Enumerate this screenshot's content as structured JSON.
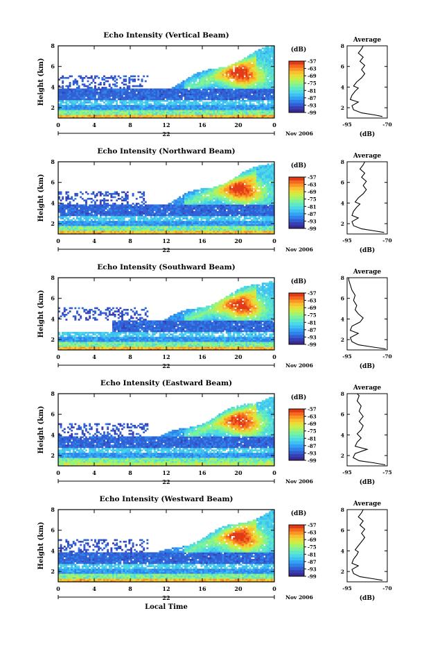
{
  "chart_data": [
    {
      "type": "heatmap",
      "title": "Echo Intensity (Vertical Beam)",
      "ylabel": "Height (km)",
      "x_ticks": [
        "0",
        "4",
        "8",
        "12",
        "16",
        "20",
        "0"
      ],
      "x_day_label": "22",
      "x_month_label": "Nov 2006",
      "xlim": [
        0,
        24
      ],
      "y_ticks": [
        "2",
        "4",
        "6",
        "8"
      ],
      "ylim": [
        1,
        8
      ],
      "colorbar_unit": "(dB)",
      "colorbar_ticks": [
        "-57",
        "-63",
        "-69",
        "-75",
        "-81",
        "-87",
        "-93",
        "-99"
      ],
      "colorbar_range": [
        -99,
        -57
      ],
      "average_profile": {
        "title": "Average",
        "xlabel": "(dB)",
        "x_ticks": [
          "-95",
          "-70"
        ],
        "xlim": [
          -95,
          -70
        ],
        "y_ticks": [
          "2",
          "4",
          "6",
          "8"
        ],
        "ylim": [
          1,
          8
        ],
        "points": [
          [
            -73,
            1.15
          ],
          [
            -78,
            1.3
          ],
          [
            -86,
            1.5
          ],
          [
            -91,
            1.8
          ],
          [
            -92,
            2.2
          ],
          [
            -88,
            2.55
          ],
          [
            -93,
            2.8
          ],
          [
            -92,
            3.2
          ],
          [
            -90,
            3.6
          ],
          [
            -88,
            3.9
          ],
          [
            -91,
            4.1
          ],
          [
            -89,
            4.5
          ],
          [
            -86,
            4.9
          ],
          [
            -84,
            5.3
          ],
          [
            -86,
            5.7
          ],
          [
            -84,
            6.1
          ],
          [
            -87,
            6.5
          ],
          [
            -85,
            6.9
          ],
          [
            -88,
            7.3
          ],
          [
            -86,
            7.7
          ],
          [
            -85,
            8.0
          ]
        ]
      }
    },
    {
      "type": "heatmap",
      "title": "Echo Intensity (Northward Beam)",
      "ylabel": "Height (km)",
      "x_ticks": [
        "0",
        "4",
        "8",
        "12",
        "16",
        "20",
        "0"
      ],
      "x_day_label": "22",
      "x_month_label": "Nov 2006",
      "xlim": [
        0,
        24
      ],
      "y_ticks": [
        "2",
        "4",
        "6",
        "8"
      ],
      "ylim": [
        1,
        8
      ],
      "colorbar_unit": "(dB)",
      "colorbar_ticks": [
        "-57",
        "-63",
        "-69",
        "-75",
        "-81",
        "-87",
        "-93",
        "-99"
      ],
      "colorbar_range": [
        -99,
        -57
      ],
      "average_profile": {
        "title": "Average",
        "xlabel": "(dB)",
        "x_ticks": [
          "-95",
          "-70"
        ],
        "xlim": [
          -95,
          -70
        ],
        "y_ticks": [
          "2",
          "4",
          "6",
          "8"
        ],
        "ylim": [
          1,
          8
        ],
        "points": [
          [
            -72,
            1.15
          ],
          [
            -78,
            1.3
          ],
          [
            -86,
            1.5
          ],
          [
            -91,
            1.8
          ],
          [
            -92,
            2.2
          ],
          [
            -88,
            2.55
          ],
          [
            -92,
            2.8
          ],
          [
            -91,
            3.2
          ],
          [
            -89,
            3.6
          ],
          [
            -87,
            3.9
          ],
          [
            -90,
            4.1
          ],
          [
            -88,
            4.5
          ],
          [
            -85,
            4.9
          ],
          [
            -83,
            5.3
          ],
          [
            -85,
            5.7
          ],
          [
            -83,
            6.1
          ],
          [
            -86,
            6.5
          ],
          [
            -84,
            6.9
          ],
          [
            -87,
            7.3
          ],
          [
            -85,
            7.7
          ],
          [
            -84,
            8.0
          ]
        ]
      }
    },
    {
      "type": "heatmap",
      "title": "Echo Intensity (Southward Beam)",
      "ylabel": "Height (km)",
      "x_ticks": [
        "0",
        "4",
        "8",
        "12",
        "16",
        "20",
        "0"
      ],
      "x_day_label": "22",
      "x_month_label": "Nov 2006",
      "xlim": [
        0,
        24
      ],
      "y_ticks": [
        "2",
        "4",
        "6",
        "8"
      ],
      "ylim": [
        1,
        8
      ],
      "colorbar_unit": "(dB)",
      "colorbar_ticks": [
        "-57",
        "-63",
        "-69",
        "-75",
        "-81",
        "-87",
        "-93",
        "-99"
      ],
      "colorbar_range": [
        -99,
        -57
      ],
      "average_profile": {
        "title": "Average",
        "xlabel": "(dB)",
        "x_ticks": [
          "-95",
          "-70"
        ],
        "xlim": [
          -95,
          -70
        ],
        "y_ticks": [
          "2",
          "4",
          "6",
          "8"
        ],
        "ylim": [
          1,
          8
        ],
        "points": [
          [
            -71,
            1.1
          ],
          [
            -80,
            1.3
          ],
          [
            -88,
            1.5
          ],
          [
            -92,
            1.8
          ],
          [
            -93,
            2.2
          ],
          [
            -88,
            2.6
          ],
          [
            -93,
            2.9
          ],
          [
            -92,
            3.3
          ],
          [
            -87,
            3.7
          ],
          [
            -85,
            4.1
          ],
          [
            -88,
            4.5
          ],
          [
            -90,
            4.9
          ],
          [
            -89,
            5.3
          ],
          [
            -91,
            5.8
          ],
          [
            -90,
            6.3
          ],
          [
            -92,
            6.8
          ],
          [
            -93,
            7.3
          ],
          [
            -94,
            7.8
          ],
          [
            -94,
            8.0
          ]
        ]
      }
    },
    {
      "type": "heatmap",
      "title": "Echo Intensity (Eastward Beam)",
      "ylabel": "Height (km)",
      "x_ticks": [
        "0",
        "4",
        "8",
        "12",
        "16",
        "20",
        "0"
      ],
      "x_day_label": "22",
      "x_month_label": "Nov 2006",
      "xlim": [
        0,
        24
      ],
      "y_ticks": [
        "2",
        "4",
        "6",
        "8"
      ],
      "ylim": [
        1,
        8
      ],
      "colorbar_unit": "(dB)",
      "colorbar_ticks": [
        "-57",
        "-63",
        "-69",
        "-75",
        "-81",
        "-87",
        "-93",
        "-99"
      ],
      "colorbar_range": [
        -99,
        -57
      ],
      "average_profile": {
        "title": "Average",
        "xlabel": "(dB)",
        "x_ticks": [
          "-95",
          "-75"
        ],
        "xlim": [
          -95,
          -75
        ],
        "y_ticks": [
          "2",
          "4",
          "6",
          "8"
        ],
        "ylim": [
          1,
          8
        ],
        "points": [
          [
            -76,
            1.1
          ],
          [
            -82,
            1.3
          ],
          [
            -89,
            1.5
          ],
          [
            -92,
            1.8
          ],
          [
            -91,
            2.2
          ],
          [
            -85,
            2.6
          ],
          [
            -91,
            2.9
          ],
          [
            -90,
            3.3
          ],
          [
            -88,
            3.7
          ],
          [
            -90,
            4.1
          ],
          [
            -88,
            4.5
          ],
          [
            -87,
            4.9
          ],
          [
            -89,
            5.3
          ],
          [
            -87,
            5.8
          ],
          [
            -89,
            6.3
          ],
          [
            -88,
            6.8
          ],
          [
            -90,
            7.3
          ],
          [
            -89,
            7.8
          ],
          [
            -90,
            8.0
          ]
        ]
      }
    },
    {
      "type": "heatmap",
      "title": "Echo Intensity (Westward Beam)",
      "ylabel": "Height (km)",
      "xlabel": "Local Time",
      "x_ticks": [
        "0",
        "4",
        "8",
        "12",
        "16",
        "20",
        "0"
      ],
      "x_day_label": "22",
      "x_month_label": "Nov 2006",
      "xlim": [
        0,
        24
      ],
      "y_ticks": [
        "2",
        "4",
        "6",
        "8"
      ],
      "ylim": [
        1,
        8
      ],
      "colorbar_unit": "(dB)",
      "colorbar_ticks": [
        "-57",
        "-63",
        "-69",
        "-75",
        "-81",
        "-87",
        "-93",
        "-99"
      ],
      "colorbar_range": [
        -99,
        -57
      ],
      "average_profile": {
        "title": "Average",
        "xlabel": "(dB)",
        "x_ticks": [
          "-95",
          "-70"
        ],
        "xlim": [
          -95,
          -70
        ],
        "y_ticks": [
          "2",
          "4",
          "6",
          "8"
        ],
        "ylim": [
          1,
          8
        ],
        "points": [
          [
            -73,
            1.15
          ],
          [
            -79,
            1.3
          ],
          [
            -87,
            1.5
          ],
          [
            -91,
            1.8
          ],
          [
            -92,
            2.2
          ],
          [
            -88,
            2.55
          ],
          [
            -92,
            2.8
          ],
          [
            -91,
            3.2
          ],
          [
            -89,
            3.6
          ],
          [
            -88,
            3.9
          ],
          [
            -90,
            4.1
          ],
          [
            -88,
            4.5
          ],
          [
            -86,
            4.9
          ],
          [
            -84,
            5.3
          ],
          [
            -86,
            5.7
          ],
          [
            -84,
            6.1
          ],
          [
            -87,
            6.5
          ],
          [
            -85,
            6.9
          ],
          [
            -88,
            7.3
          ],
          [
            -86,
            7.7
          ],
          [
            -85,
            8.0
          ]
        ]
      }
    }
  ]
}
